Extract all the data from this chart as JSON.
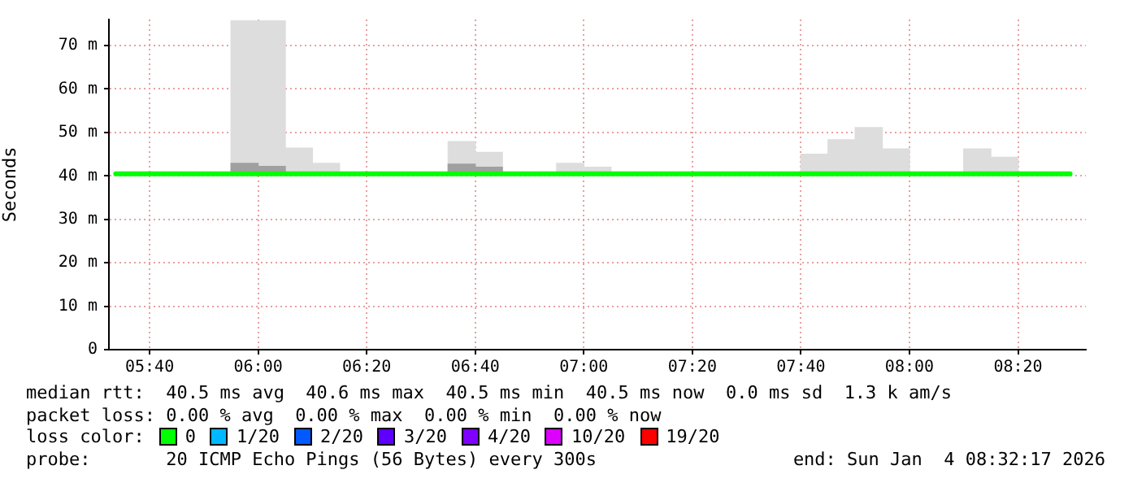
{
  "chart_data": {
    "type": "bar",
    "ylabel": "Seconds",
    "legend_title": "loss color:",
    "xlim": [
      5.5417,
      8.5417
    ],
    "xticks": [
      {
        "value": 5.6667,
        "label": "05:40"
      },
      {
        "value": 6,
        "label": "06:00"
      },
      {
        "value": 6.3333,
        "label": "06:20"
      },
      {
        "value": 6.6667,
        "label": "06:40"
      },
      {
        "value": 7,
        "label": "07:00"
      },
      {
        "value": 7.3333,
        "label": "07:20"
      },
      {
        "value": 7.6667,
        "label": "07:40"
      },
      {
        "value": 8,
        "label": "08:00"
      },
      {
        "value": 8.3333,
        "label": "08:20"
      }
    ],
    "ylim": [
      0,
      76
    ],
    "yticks": [
      0,
      {
        "value": 10,
        "label": "10 m"
      },
      {
        "value": 20,
        "label": "20 m"
      },
      {
        "value": 30,
        "label": "30 m"
      },
      {
        "value": 40,
        "label": "40 m"
      },
      {
        "value": 50,
        "label": "50 m"
      },
      {
        "value": 60,
        "label": "60 m"
      },
      {
        "value": 70,
        "label": "70 m"
      }
    ],
    "grid": true,
    "legend": "bottom",
    "marker": "none",
    "series": [
      {
        "color": "#dddddd",
        "x": [
          5.9583,
          6.0417,
          6.125,
          6.2083,
          6.625,
          6.7083,
          6.9583,
          7.0417,
          7.7083,
          7.7917,
          7.875,
          7.9583,
          8.2083,
          8.2917
        ],
        "base": [
          40.5,
          40.5,
          40.5,
          40.5,
          40.5,
          40.5,
          40.5,
          40.5,
          40.5,
          40.5,
          40.5,
          40.5,
          40.5,
          40.5
        ],
        "values": [
          35.2,
          35.2,
          5.9,
          2.4,
          7.4,
          4.9,
          2.4,
          1.5,
          4.5,
          7.8,
          10.6,
          5.7,
          5.7,
          3.8
        ]
      },
      {
        "color": "#a0a0a0",
        "x": [
          5.9583,
          6.0417,
          6.625,
          6.7083
        ],
        "base": [
          40.5,
          40.5,
          40.5,
          40.5
        ],
        "values": [
          2.4,
          1.7,
          2.2,
          1.5
        ]
      },
      {
        "type": "line",
        "name": "0",
        "color": "#00ff00",
        "x": [
          5.5625,
          8.4933
        ],
        "values": [
          40.5,
          40.5
        ]
      },
      {
        "type": "line",
        "name": "1/20",
        "color": "#00b8ff"
      },
      {
        "type": "line",
        "name": "2/20",
        "color": "#0059ff"
      },
      {
        "type": "line",
        "name": "3/20",
        "color": "#5e00ff"
      },
      {
        "type": "line",
        "name": "4/20",
        "color": "#7e00ff"
      },
      {
        "type": "line",
        "name": "10/20",
        "color": "#dd00ff"
      },
      {
        "type": "line",
        "name": "19/20",
        "color": "#ff0000"
      }
    ],
    "annotations": [
      "median rtt:  40.5 ms avg  40.6 ms max  40.5 ms min  40.5 ms now  0.0 ms sd  1.3 k am/s",
      "packet loss: 0.00 % avg  0.00 % max  0.00 % min  0.00 % now",
      "probe:       20 ICMP Echo Pings (56 Bytes) every 300s",
      "end: Sun Jan  4 08:32:17 2026"
    ]
  }
}
